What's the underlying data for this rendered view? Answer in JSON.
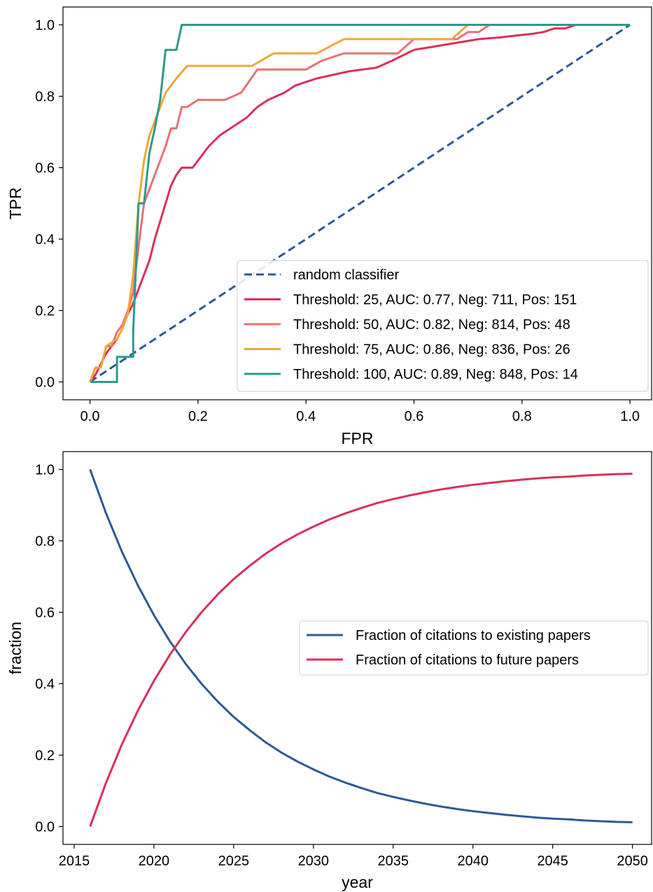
{
  "colors": {
    "random": "#2e5a94",
    "t25": "#dc2f58",
    "t50": "#eb7074",
    "t75": "#f0a737",
    "t100": "#2c9b8c",
    "existing": "#2e5a94",
    "future": "#dc2f58"
  },
  "chart_data": [
    {
      "type": "line",
      "xlabel": "FPR",
      "ylabel": "TPR",
      "xlim": [
        -0.05,
        1.04
      ],
      "ylim": [
        -0.05,
        1.05
      ],
      "xticks": [
        0.0,
        0.2,
        0.4,
        0.6,
        0.8,
        1.0
      ],
      "xtick_labels": [
        "0.0",
        "0.2",
        "0.4",
        "0.6",
        "0.8",
        "1.0"
      ],
      "yticks": [
        0.0,
        0.2,
        0.4,
        0.6,
        0.8,
        1.0
      ],
      "ytick_labels": [
        "0.0",
        "0.2",
        "0.4",
        "0.6",
        "0.8",
        "1.0"
      ],
      "grid": false,
      "legend_position": "lower-right",
      "series": [
        {
          "name": "random classifier",
          "color_key": "random",
          "dash": true,
          "x": [
            0,
            1
          ],
          "y": [
            0,
            1
          ]
        },
        {
          "name": "Threshold: 25, AUC: 0.77, Neg: 711, Pos: 151",
          "color_key": "t25",
          "dash": false,
          "x": [
            0,
            0.01,
            0.02,
            0.03,
            0.04,
            0.05,
            0.06,
            0.07,
            0.08,
            0.09,
            0.1,
            0.11,
            0.12,
            0.13,
            0.14,
            0.15,
            0.16,
            0.17,
            0.18,
            0.19,
            0.2,
            0.22,
            0.24,
            0.27,
            0.29,
            0.31,
            0.33,
            0.36,
            0.38,
            0.4,
            0.42,
            0.45,
            0.48,
            0.53,
            0.56,
            0.6,
            0.64,
            0.68,
            0.72,
            0.76,
            0.79,
            0.82,
            0.84,
            0.86,
            0.88,
            0.9,
            0.93,
            0.95
          ],
          "y": [
            0,
            0.02,
            0.05,
            0.08,
            0.1,
            0.12,
            0.15,
            0.19,
            0.22,
            0.26,
            0.3,
            0.34,
            0.4,
            0.45,
            0.5,
            0.55,
            0.58,
            0.6,
            0.6,
            0.6,
            0.62,
            0.66,
            0.69,
            0.72,
            0.74,
            0.77,
            0.79,
            0.81,
            0.83,
            0.84,
            0.85,
            0.86,
            0.87,
            0.88,
            0.9,
            0.93,
            0.94,
            0.95,
            0.96,
            0.965,
            0.97,
            0.975,
            0.98,
            0.99,
            0.99,
            1.0,
            1.0,
            1.0
          ]
        },
        {
          "name": "Threshold: 50, AUC: 0.82, Neg: 814, Pos: 48",
          "color_key": "t50",
          "dash": false,
          "x": [
            0,
            0.01,
            0.02,
            0.03,
            0.04,
            0.05,
            0.06,
            0.07,
            0.08,
            0.09,
            0.1,
            0.11,
            0.12,
            0.13,
            0.14,
            0.15,
            0.16,
            0.17,
            0.18,
            0.2,
            0.22,
            0.25,
            0.28,
            0.31,
            0.34,
            0.37,
            0.4,
            0.43,
            0.47,
            0.52,
            0.57,
            0.6,
            0.64,
            0.68,
            0.7,
            0.72,
            0.74
          ],
          "y": [
            0,
            0.04,
            0.04,
            0.1,
            0.1,
            0.14,
            0.16,
            0.2,
            0.25,
            0.38,
            0.5,
            0.54,
            0.58,
            0.62,
            0.66,
            0.71,
            0.71,
            0.77,
            0.77,
            0.79,
            0.79,
            0.79,
            0.81,
            0.875,
            0.875,
            0.875,
            0.875,
            0.9,
            0.92,
            0.92,
            0.92,
            0.96,
            0.96,
            0.96,
            0.98,
            0.98,
            1.0
          ]
        },
        {
          "name": "Threshold: 75, AUC: 0.86, Neg: 836, Pos: 26",
          "color_key": "t75",
          "dash": false,
          "x": [
            0,
            0.01,
            0.02,
            0.03,
            0.05,
            0.06,
            0.07,
            0.08,
            0.09,
            0.1,
            0.11,
            0.12,
            0.13,
            0.14,
            0.16,
            0.18,
            0.22,
            0.26,
            0.3,
            0.34,
            0.38,
            0.42,
            0.47,
            0.52,
            0.57,
            0.62,
            0.67,
            0.7,
            0.73
          ],
          "y": [
            0,
            0.04,
            0.04,
            0.1,
            0.12,
            0.15,
            0.19,
            0.3,
            0.5,
            0.62,
            0.69,
            0.73,
            0.77,
            0.81,
            0.85,
            0.885,
            0.885,
            0.885,
            0.885,
            0.92,
            0.92,
            0.92,
            0.96,
            0.96,
            0.96,
            0.96,
            0.96,
            1.0,
            1.0
          ]
        },
        {
          "name": "Threshold: 100, AUC: 0.89, Neg: 848, Pos: 14",
          "color_key": "t100",
          "dash": false,
          "x": [
            0,
            0.05,
            0.05,
            0.08,
            0.08,
            0.09,
            0.1,
            0.11,
            0.12,
            0.13,
            0.14,
            0.16,
            0.17,
            0.2,
            0.4,
            0.6,
            0.8,
            1.0
          ],
          "y": [
            0,
            0,
            0.07,
            0.07,
            0.14,
            0.5,
            0.5,
            0.64,
            0.71,
            0.79,
            0.93,
            0.93,
            1.0,
            1.0,
            1.0,
            1.0,
            1.0,
            1.0
          ]
        }
      ]
    },
    {
      "type": "line",
      "xlabel": "year",
      "ylabel": "fraction",
      "xlim": [
        2014.3,
        2051.2
      ],
      "ylim": [
        -0.05,
        1.05
      ],
      "xticks": [
        2015,
        2020,
        2025,
        2030,
        2035,
        2040,
        2045,
        2050
      ],
      "xtick_labels": [
        "2015",
        "2020",
        "2025",
        "2030",
        "2035",
        "2040",
        "2045",
        "2050"
      ],
      "yticks": [
        0.0,
        0.2,
        0.4,
        0.6,
        0.8,
        1.0
      ],
      "ytick_labels": [
        "0.0",
        "0.2",
        "0.4",
        "0.6",
        "0.8",
        "1.0"
      ],
      "grid": false,
      "legend_position": "center-right",
      "x": [
        2016,
        2017,
        2018,
        2019,
        2020,
        2021,
        2022,
        2023,
        2024,
        2025,
        2026,
        2027,
        2028,
        2029,
        2030,
        2031,
        2032,
        2033,
        2034,
        2035,
        2036,
        2037,
        2038,
        2039,
        2040,
        2041,
        2042,
        2043,
        2044,
        2045,
        2046,
        2047,
        2048,
        2049,
        2050
      ],
      "series": [
        {
          "name": "Fraction of citations to existing papers",
          "color_key": "existing",
          "values": [
            1.0,
            0.877,
            0.769,
            0.675,
            0.592,
            0.519,
            0.455,
            0.399,
            0.35,
            0.307,
            0.27,
            0.236,
            0.207,
            0.182,
            0.16,
            0.14,
            0.123,
            0.108,
            0.094,
            0.083,
            0.073,
            0.064,
            0.056,
            0.049,
            0.043,
            0.038,
            0.033,
            0.029,
            0.025,
            0.022,
            0.02,
            0.017,
            0.015,
            0.013,
            0.012
          ]
        },
        {
          "name": "Fraction of citations to future papers",
          "color_key": "future",
          "values": [
            0.0,
            0.123,
            0.231,
            0.325,
            0.408,
            0.481,
            0.545,
            0.601,
            0.65,
            0.693,
            0.73,
            0.764,
            0.793,
            0.818,
            0.84,
            0.86,
            0.877,
            0.892,
            0.906,
            0.917,
            0.927,
            0.936,
            0.944,
            0.951,
            0.957,
            0.962,
            0.967,
            0.971,
            0.975,
            0.978,
            0.98,
            0.983,
            0.985,
            0.987,
            0.988
          ]
        }
      ]
    }
  ]
}
